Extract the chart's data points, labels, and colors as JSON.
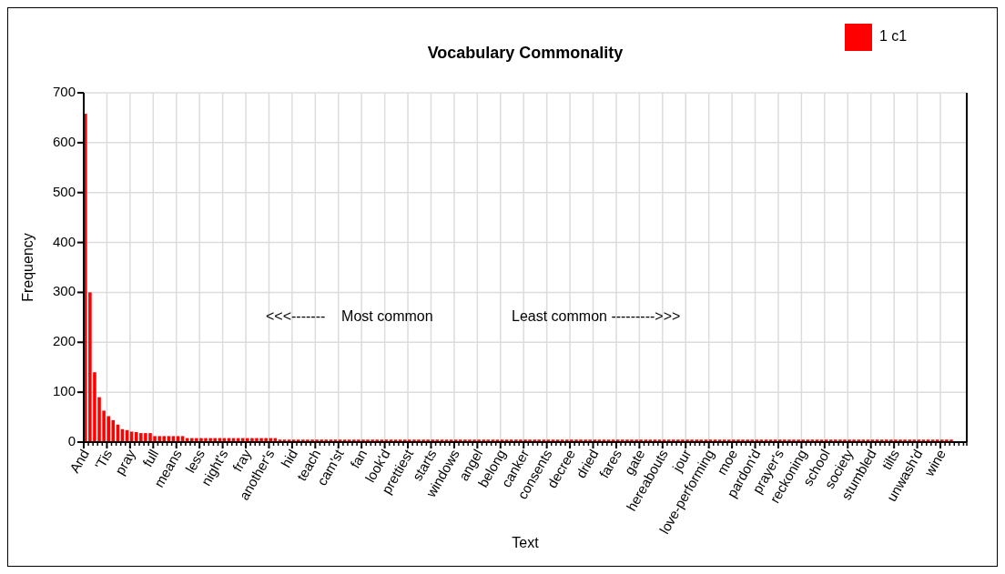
{
  "chart_data": {
    "type": "bar",
    "title": "Vocabulary Commonality",
    "xlabel": "Text",
    "ylabel": "Frequency",
    "annotations": [
      "<<<-------    Most common",
      "Least common --------->>>"
    ],
    "categories": [
      "And",
      null,
      null,
      null,
      null,
      "'Tis",
      null,
      null,
      null,
      null,
      "pray",
      null,
      null,
      null,
      null,
      "full",
      null,
      null,
      null,
      null,
      "means",
      null,
      null,
      null,
      null,
      "less",
      null,
      null,
      null,
      null,
      "night's",
      null,
      null,
      null,
      null,
      "fray",
      null,
      null,
      null,
      null,
      "another's",
      null,
      null,
      null,
      null,
      "hid",
      null,
      null,
      null,
      null,
      "teach",
      null,
      null,
      null,
      null,
      "cam'st",
      null,
      null,
      null,
      null,
      "fan",
      null,
      null,
      null,
      null,
      "look'd",
      null,
      null,
      null,
      null,
      "prettiest",
      null,
      null,
      null,
      null,
      "starts",
      null,
      null,
      null,
      null,
      "windows",
      null,
      null,
      null,
      null,
      "angel",
      null,
      null,
      null,
      null,
      "belong",
      null,
      null,
      null,
      null,
      "canker",
      null,
      null,
      null,
      null,
      "consents",
      null,
      null,
      null,
      null,
      "decree",
      null,
      null,
      null,
      null,
      "dried",
      null,
      null,
      null,
      null,
      "fares",
      null,
      null,
      null,
      null,
      "gate",
      null,
      null,
      null,
      null,
      "hereabouts",
      null,
      null,
      null,
      null,
      "jour",
      null,
      null,
      null,
      null,
      "love-performing",
      null,
      null,
      null,
      null,
      "moe",
      null,
      null,
      null,
      null,
      "pardon'd",
      null,
      null,
      null,
      null,
      "prayer's",
      null,
      null,
      null,
      null,
      "reckoning",
      null,
      null,
      null,
      null,
      "school",
      null,
      null,
      null,
      null,
      "society",
      null,
      null,
      null,
      null,
      "stumbled",
      null,
      null,
      null,
      null,
      "tilts",
      null,
      null,
      null,
      null,
      "unwash'd",
      null,
      null,
      null,
      null,
      "wine",
      null,
      null,
      null,
      null,
      null
    ],
    "series": [
      {
        "name": "1 c1",
        "color": "#ff0000",
        "values": [
          658,
          300,
          140,
          90,
          63,
          52,
          44,
          35,
          26,
          24,
          21,
          20,
          18,
          18,
          18,
          12,
          12,
          12,
          12,
          12,
          12,
          12,
          8,
          8,
          8,
          8,
          8,
          8,
          8,
          8,
          8,
          8,
          8,
          8,
          8,
          8,
          8,
          8,
          8,
          8,
          8,
          8,
          5,
          5,
          5,
          5,
          5,
          5,
          5,
          5,
          5,
          5,
          5,
          5,
          5,
          5,
          5,
          5,
          5,
          5,
          5,
          5,
          5,
          5,
          5,
          5,
          5,
          5,
          5,
          5,
          5,
          5,
          5,
          5,
          5,
          5,
          5,
          5,
          5,
          5,
          5,
          5,
          5,
          5,
          5,
          5,
          5,
          5,
          5,
          5,
          5,
          5,
          5,
          5,
          5,
          5,
          5,
          5,
          5,
          5,
          5,
          5,
          5,
          5,
          5,
          5,
          5,
          5,
          5,
          5,
          5,
          5,
          5,
          5,
          5,
          5,
          5,
          5,
          5,
          5,
          5,
          5,
          5,
          5,
          5,
          5,
          5,
          5,
          5,
          5,
          5,
          5,
          5,
          5,
          5,
          5,
          5,
          5,
          5,
          5,
          5,
          5,
          5,
          5,
          5,
          5,
          5,
          5,
          5,
          5,
          5,
          5,
          5,
          5,
          5,
          5,
          5,
          5,
          5,
          5,
          5,
          5,
          5,
          5,
          5,
          5,
          5,
          5,
          5,
          5,
          5,
          5,
          5,
          5,
          5,
          5,
          5,
          5,
          5,
          5,
          5,
          5,
          5,
          5,
          5,
          5,
          5,
          5,
          null,
          null,
          null
        ]
      }
    ],
    "ylim": [
      0,
      700
    ],
    "yticks": [
      0,
      100,
      200,
      300,
      400,
      500,
      600,
      700
    ],
    "grid": true,
    "legend": "top right"
  }
}
